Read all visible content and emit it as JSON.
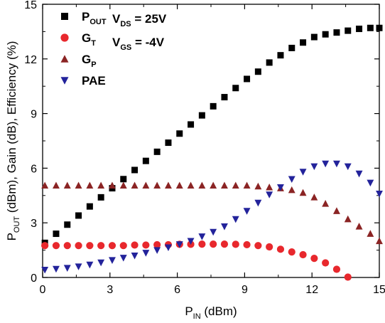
{
  "chart_data": {
    "type": "scatter",
    "xlim": [
      0,
      15
    ],
    "ylim": [
      0,
      15
    ],
    "xticks": [
      0,
      3,
      6,
      9,
      12,
      15
    ],
    "yticks": [
      0,
      3,
      6,
      9,
      12,
      15
    ],
    "xlabel": {
      "main": "P",
      "sub": "IN",
      "rest": " (dBm)"
    },
    "ylabel": {
      "main": "P",
      "sub": "OUT",
      "rest": " (dBm), Gain (dB), Efficiency (%)"
    },
    "grid": false,
    "legend_position": "top-left",
    "annotations": [
      {
        "main": "V",
        "sub": "DS",
        "rest": " = 25V"
      },
      {
        "main": "V",
        "sub": "GS",
        "rest": " = -4V"
      }
    ],
    "series": [
      {
        "name": {
          "main": "P",
          "sub": "OUT"
        },
        "marker": "square",
        "color": "#000000",
        "x": [
          0.1,
          0.6,
          1.1,
          1.6,
          2.1,
          2.6,
          3.1,
          3.6,
          4.1,
          4.6,
          5.1,
          5.6,
          6.1,
          6.6,
          7.1,
          7.6,
          8.1,
          8.6,
          9.1,
          9.6,
          10.1,
          10.6,
          11.1,
          11.6,
          12.1,
          12.6,
          13.1,
          13.6,
          14.1,
          14.6,
          15.0
        ],
        "y": [
          1.9,
          2.4,
          2.9,
          3.4,
          3.9,
          4.4,
          4.9,
          5.4,
          5.9,
          6.4,
          6.9,
          7.4,
          7.9,
          8.4,
          8.9,
          9.4,
          9.9,
          10.4,
          10.9,
          11.3,
          11.8,
          12.2,
          12.6,
          12.9,
          13.2,
          13.35,
          13.45,
          13.55,
          13.65,
          13.7,
          13.7
        ]
      },
      {
        "name": {
          "main": "G",
          "sub": "T"
        },
        "marker": "circle",
        "color": "#e8282d",
        "x": [
          0.1,
          0.6,
          1.1,
          1.6,
          2.1,
          2.6,
          3.1,
          3.6,
          4.1,
          4.6,
          5.1,
          5.6,
          6.1,
          6.6,
          7.1,
          7.6,
          8.1,
          8.6,
          9.1,
          9.6,
          10.1,
          10.6,
          11.1,
          11.6,
          12.1,
          12.6,
          13.1,
          13.6
        ],
        "y": [
          1.75,
          1.75,
          1.75,
          1.75,
          1.75,
          1.75,
          1.75,
          1.75,
          1.78,
          1.78,
          1.8,
          1.8,
          1.82,
          1.82,
          1.83,
          1.83,
          1.83,
          1.82,
          1.8,
          1.75,
          1.68,
          1.55,
          1.4,
          1.25,
          1.05,
          0.8,
          0.45,
          0.02
        ]
      },
      {
        "name": {
          "main": "G",
          "sub": "P"
        },
        "marker": "triangle-up",
        "color": "#8b2424",
        "x": [
          0.1,
          0.6,
          1.1,
          1.6,
          2.1,
          2.6,
          3.1,
          3.6,
          4.1,
          4.6,
          5.1,
          5.6,
          6.1,
          6.6,
          7.1,
          7.6,
          8.1,
          8.6,
          9.1,
          9.6,
          10.1,
          10.6,
          11.1,
          11.6,
          12.1,
          12.6,
          13.1,
          13.6,
          14.1,
          14.6,
          15.0
        ],
        "y": [
          5.05,
          5.05,
          5.05,
          5.05,
          5.05,
          5.05,
          5.05,
          5.05,
          5.05,
          5.05,
          5.05,
          5.05,
          5.05,
          5.05,
          5.05,
          5.05,
          5.05,
          5.05,
          5.05,
          5.0,
          4.95,
          4.9,
          4.8,
          4.65,
          4.4,
          4.05,
          3.65,
          3.2,
          2.8,
          2.4,
          2.0
        ]
      },
      {
        "name": {
          "main": "PAE",
          "sub": ""
        },
        "marker": "triangle-down",
        "color": "#23239b",
        "x": [
          0.1,
          0.6,
          1.1,
          1.6,
          2.1,
          2.6,
          3.1,
          3.6,
          4.1,
          4.6,
          5.1,
          5.6,
          6.1,
          6.6,
          7.1,
          7.6,
          8.1,
          8.6,
          9.1,
          9.6,
          10.1,
          10.6,
          11.1,
          11.6,
          12.1,
          12.6,
          13.1,
          13.6,
          14.1,
          14.6,
          15.0
        ],
        "y": [
          0.42,
          0.47,
          0.52,
          0.6,
          0.7,
          0.82,
          0.95,
          1.08,
          1.2,
          1.35,
          1.5,
          1.65,
          1.82,
          2.0,
          2.25,
          2.5,
          2.8,
          3.2,
          3.65,
          4.1,
          4.55,
          4.95,
          5.4,
          5.8,
          6.1,
          6.25,
          6.25,
          6.1,
          5.7,
          5.2,
          4.6
        ]
      }
    ]
  }
}
